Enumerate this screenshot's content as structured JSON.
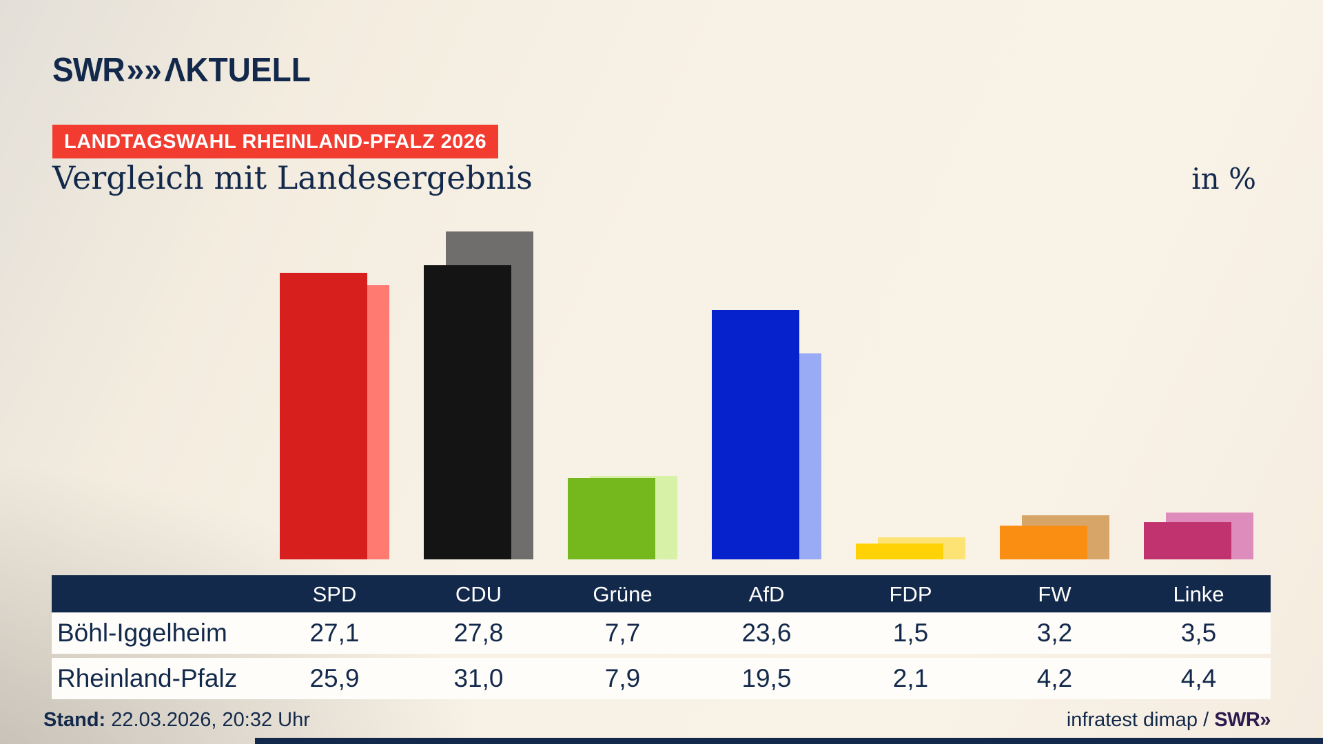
{
  "brand": {
    "swr": "SWR",
    "chevron": "»",
    "aktuell": "ΛKTUELL"
  },
  "page": {
    "badge": "LANDTAGSWAHL RHEINLAND-PFALZ 2026",
    "title": "Vergleich mit Landesergebnis",
    "unit": "in %"
  },
  "chart_data": {
    "type": "bar",
    "title": "Vergleich mit Landesergebnis",
    "ylabel": "in %",
    "ylim": [
      0,
      32
    ],
    "grid": false,
    "legend_position": "table-below",
    "categories": [
      "SPD",
      "CDU",
      "Grüne",
      "AfD",
      "FDP",
      "FW",
      "Linke"
    ],
    "category_ids": [
      "spd",
      "cdu",
      "gruene",
      "afd",
      "fdp",
      "fw",
      "linke"
    ],
    "series": [
      {
        "name": "Böhl-Iggelheim",
        "values": [
          27.1,
          27.8,
          7.7,
          23.6,
          1.5,
          3.2,
          3.5
        ],
        "colors": [
          "#d7201d",
          "#141414",
          "#74b81e",
          "#0522cd",
          "#ffd205",
          "#f98e13",
          "#c0336f"
        ]
      },
      {
        "name": "Rheinland-Pfalz",
        "values": [
          25.9,
          31.0,
          7.9,
          19.5,
          2.1,
          4.2,
          4.4
        ],
        "colors": [
          "#ff7b72",
          "#6f6e6c",
          "#d7f2a6",
          "#9aabf6",
          "#fde374",
          "#d7a567",
          "#de8cbc"
        ]
      }
    ]
  },
  "table": {
    "columns": [
      "SPD",
      "CDU",
      "Grüne",
      "AfD",
      "FDP",
      "FW",
      "Linke"
    ],
    "rows": [
      {
        "label": "Böhl-Iggelheim",
        "values": [
          "27,1",
          "27,8",
          "7,7",
          "23,6",
          "1,5",
          "3,2",
          "3,5"
        ]
      },
      {
        "label": "Rheinland-Pfalz",
        "values": [
          "25,9",
          "31,0",
          "7,9",
          "19,5",
          "2,1",
          "4,2",
          "4,4"
        ]
      }
    ]
  },
  "footer": {
    "stand_label": "Stand:",
    "stand_value": " 22.03.2026, 20:32 Uhr",
    "source": "infratest dimap / ",
    "source_brand": "SWR»"
  },
  "colors": {
    "navy": "#13294b",
    "badge_red": "#f23c30",
    "brand_purple": "#2d1b4e",
    "row_bg": "#fefdfa"
  }
}
